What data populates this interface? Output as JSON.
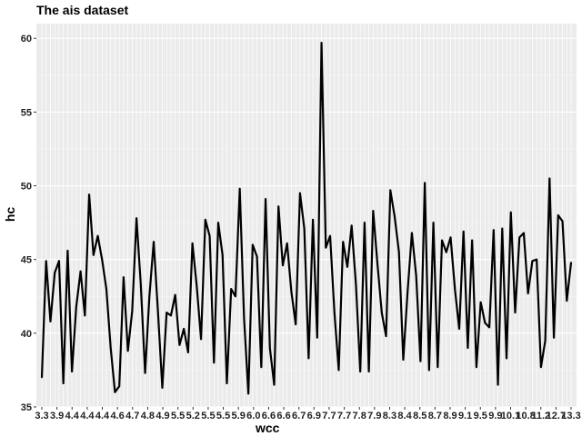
{
  "chart_data": {
    "type": "line",
    "title": "The ais dataset",
    "xlabel": "wcc",
    "ylabel": "hc",
    "ylim": [
      35,
      61
    ],
    "y_ticks": [
      35,
      40,
      45,
      50,
      55,
      60
    ],
    "x_ticks": [
      "3.3",
      "3.9",
      "4.4",
      "4.4",
      "4.4",
      "4.6",
      "4.7",
      "4.8",
      "4.9",
      "5.5",
      "5.2",
      "5.5",
      "5.5",
      "5.9",
      "6.0",
      "6.6",
      "6.6",
      "6.7",
      "6.9",
      "7.7",
      "7.7",
      "7.8",
      "7.9",
      "8.3",
      "8.4",
      "8.5",
      "8.7",
      "8.9",
      "9.1",
      "9.5",
      "9.9",
      "10.1",
      "10.8",
      "11.2",
      "12.7",
      "13.3"
    ],
    "grid": true,
    "series": [
      {
        "values": [
          37.0,
          44.9,
          40.8,
          44.1,
          44.9,
          36.6,
          45.6,
          37.4,
          41.8,
          44.2,
          41.2,
          49.4,
          45.3,
          46.6,
          45.0,
          43.0,
          39.0,
          36.0,
          36.4,
          43.8,
          38.8,
          41.5,
          47.8,
          43.3,
          37.3,
          42.5,
          46.2,
          41.4,
          36.3,
          41.4,
          41.2,
          42.6,
          39.2,
          40.3,
          38.7,
          46.1,
          43.2,
          39.6,
          47.7,
          46.6,
          38.0,
          47.5,
          45.3,
          36.6,
          43.0,
          42.5,
          49.8,
          41.0,
          35.9,
          46.0,
          45.2,
          37.7,
          49.1,
          39.0,
          36.5,
          48.6,
          44.6,
          46.1,
          42.8,
          40.6,
          49.5,
          47.1,
          38.3,
          47.7,
          39.7,
          59.7,
          45.8,
          46.6,
          41.4,
          37.5,
          46.2,
          44.5,
          47.3,
          43.3,
          37.4,
          47.5,
          37.4,
          48.3,
          44.7,
          41.4,
          39.8,
          49.7,
          47.9,
          45.5,
          38.2,
          42.8,
          46.8,
          43.9,
          38.1,
          50.2,
          37.5,
          47.5,
          37.7,
          46.3,
          45.5,
          46.5,
          43.0,
          40.3,
          46.9,
          39.0,
          46.3,
          37.7,
          42.1,
          40.7,
          40.4,
          47.0,
          36.5,
          47.1,
          38.3,
          48.2,
          41.4,
          46.5,
          46.8,
          42.7,
          44.9,
          45.0,
          37.7,
          39.5,
          50.5,
          39.7,
          48.0,
          47.6,
          42.2,
          44.8
        ]
      }
    ]
  }
}
